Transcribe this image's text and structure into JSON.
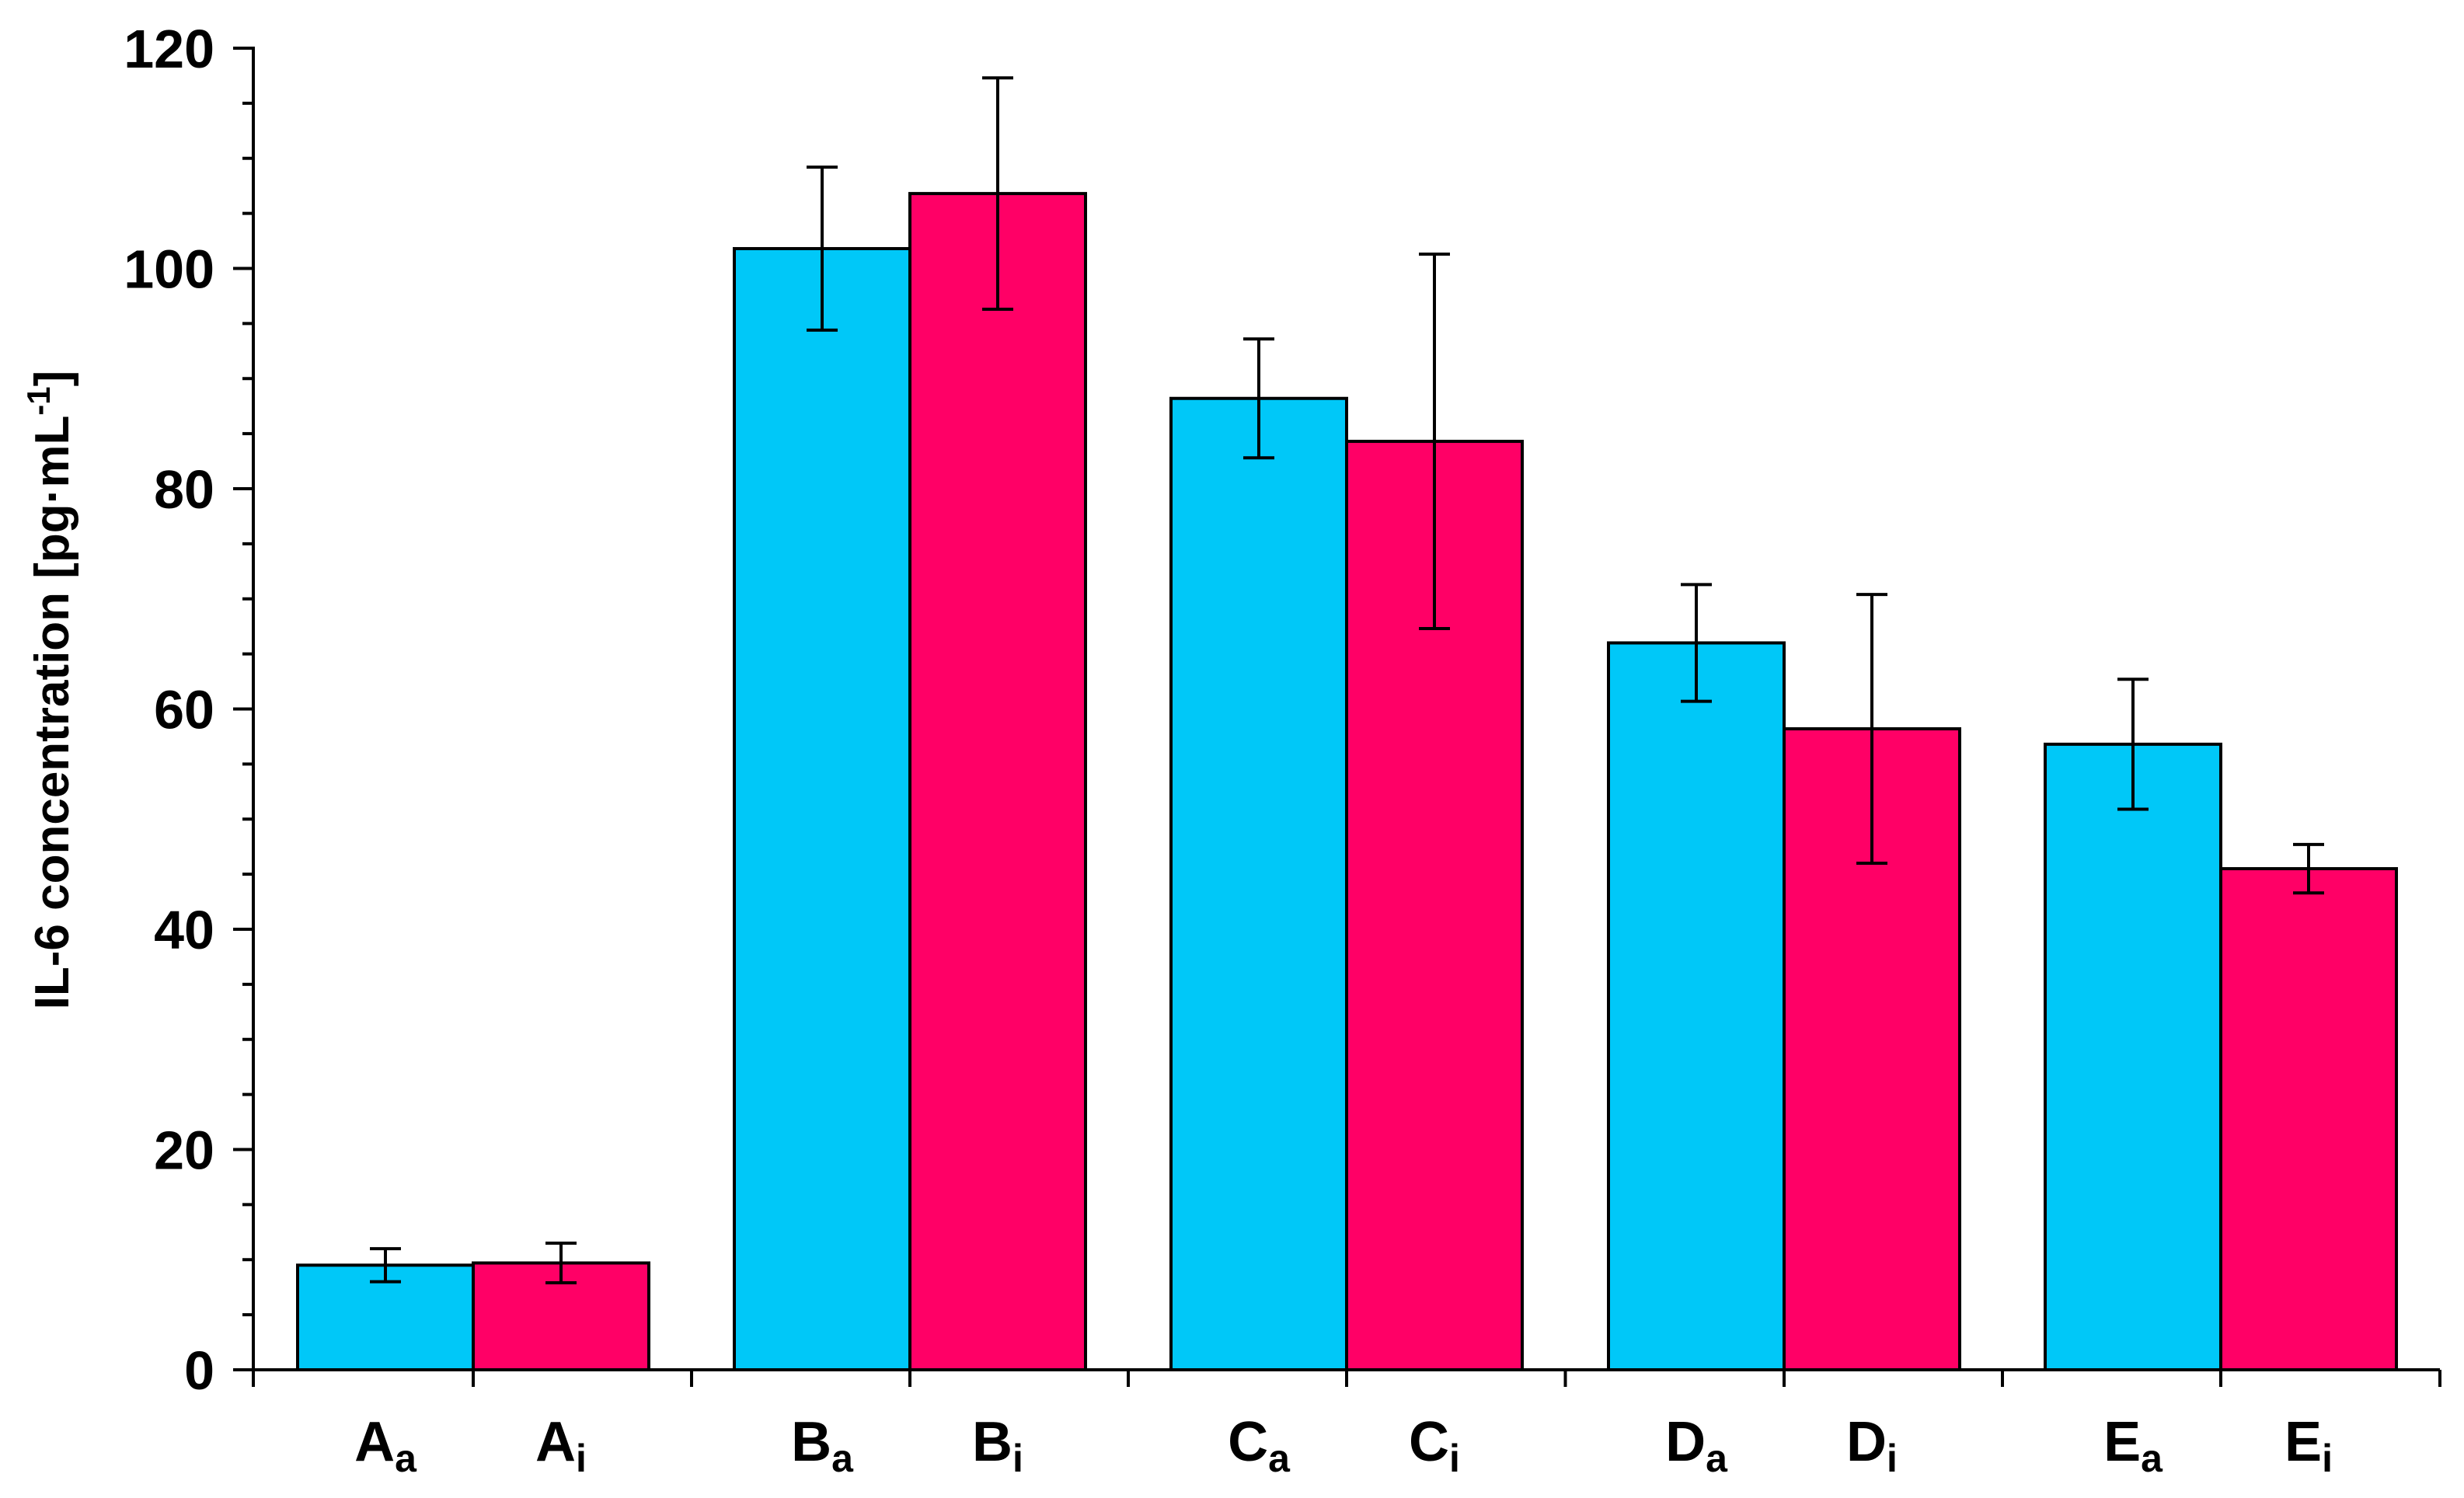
{
  "chart_data": {
    "type": "bar",
    "ylabel": "IL-6 concentration [pg·mL",
    "ylabel_sup": "-1",
    "ylabel_end": "]",
    "ylim": [
      0,
      120
    ],
    "yticks": [
      "0",
      "20",
      "40",
      "60",
      "80",
      "100",
      "120"
    ],
    "categories": [
      {
        "main": "A",
        "sub": "a"
      },
      {
        "main": "A",
        "sub": "i"
      },
      {
        "main": "B",
        "sub": "a"
      },
      {
        "main": "B",
        "sub": "i"
      },
      {
        "main": "C",
        "sub": "a"
      },
      {
        "main": "C",
        "sub": "i"
      },
      {
        "main": "D",
        "sub": "a"
      },
      {
        "main": "D",
        "sub": "i"
      },
      {
        "main": "E",
        "sub": "a"
      },
      {
        "main": "E",
        "sub": "i"
      }
    ],
    "values": [
      9.5,
      9.7,
      101.8,
      106.8,
      88.2,
      84.3,
      66.0,
      58.2,
      56.8,
      45.5
    ],
    "errors": [
      1.5,
      1.8,
      7.4,
      10.5,
      5.4,
      17.0,
      5.3,
      12.2,
      5.9,
      2.2
    ],
    "colors": {
      "a": "#00c8f8",
      "i": "#ff0066",
      "axis": "#000000"
    },
    "grid": false
  }
}
